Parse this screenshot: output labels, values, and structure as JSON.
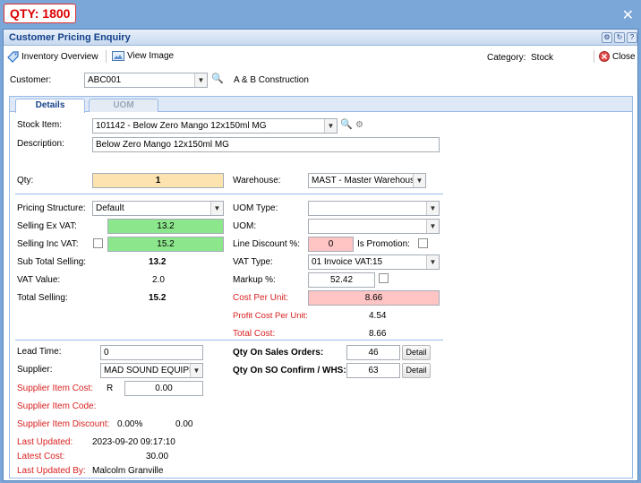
{
  "qty_badge": "QTY: 1800",
  "window": {
    "title": "Customer Pricing Enquiry"
  },
  "toolbar": {
    "inventory_overview": "Inventory Overview",
    "view_image": "View Image",
    "category_label": "Category:",
    "category_value": "Stock",
    "close_label": "Close"
  },
  "customer": {
    "label": "Customer:",
    "code": "ABC001",
    "name": "A & B Construction"
  },
  "tabs": [
    {
      "label": "Details"
    },
    {
      "label": "UOM"
    }
  ],
  "stock": {
    "item_label": "Stock Item:",
    "item_value": "101142 - Below Zero Mango 12x150ml MG",
    "desc_label": "Description:",
    "desc_value": "Below Zero Mango 12x150ml MG",
    "qty_label": "Qty:",
    "qty_value": "1",
    "warehouse_label": "Warehouse:",
    "warehouse_value": "MAST - Master Warehouse"
  },
  "pricing": {
    "structure_label": "Pricing Structure:",
    "structure_value": "Default",
    "sell_ex_label": "Selling Ex VAT:",
    "sell_ex_value": "13.2",
    "sell_inc_label": "Selling Inc VAT:",
    "sell_inc_value": "15.2",
    "sub_total_label": "Sub Total Selling:",
    "sub_total_value": "13.2",
    "vat_value_label": "VAT Value:",
    "vat_value": "2.0",
    "total_label": "Total Selling:",
    "total_value": "15.2",
    "uom_type_label": "UOM Type:",
    "uom_type_value": "",
    "uom_label": "UOM:",
    "uom_value": "",
    "line_discount_label": "Line Discount %:",
    "line_discount_value": "0",
    "is_promotion_label": "Is Promotion:",
    "vat_type_label": "VAT Type:",
    "vat_type_value": "01 Invoice VAT:15",
    "markup_label": "Markup %:",
    "markup_value": "52.42",
    "cost_per_unit_label": "Cost Per Unit:",
    "cost_per_unit_value": "8.66",
    "profit_cost_label": "Profit Cost Per Unit:",
    "profit_cost_value": "4.54",
    "total_cost_label": "Total Cost:",
    "total_cost_value": "8.66"
  },
  "supplier": {
    "lead_time_label": "Lead Time:",
    "lead_time_value": "0",
    "supplier_label": "Supplier:",
    "supplier_value": "MAD SOUND EQUIPMENT",
    "item_cost_label": "Supplier Item Cost:",
    "currency": "R",
    "item_cost_value": "0.00",
    "item_code_label": "Supplier Item Code:",
    "item_discount_label": "Supplier Item Discount:",
    "item_discount_pct": "0.00%",
    "item_discount_value": "0.00",
    "last_updated_label": "Last Updated:",
    "last_updated_value": "2023-09-20 09:17:10",
    "latest_cost_label": "Latest Cost:",
    "latest_cost_value": "30.00",
    "last_updated_by_label": "Last Updated By:",
    "last_updated_by_value": "Malcolm Granville"
  },
  "orders": {
    "sales_orders_label": "Qty On Sales Orders:",
    "sales_orders_value": "46",
    "so_confirm_label": "Qty On SO Confirm / WHS:",
    "so_confirm_value": "63",
    "detail_label": "Detail"
  },
  "colors": {
    "qty_field": "#fde3b0",
    "green_field": "#8ce68c",
    "pink_field": "#ffc4c4",
    "accent": "#15428b",
    "red_label": "#d91f1f"
  }
}
